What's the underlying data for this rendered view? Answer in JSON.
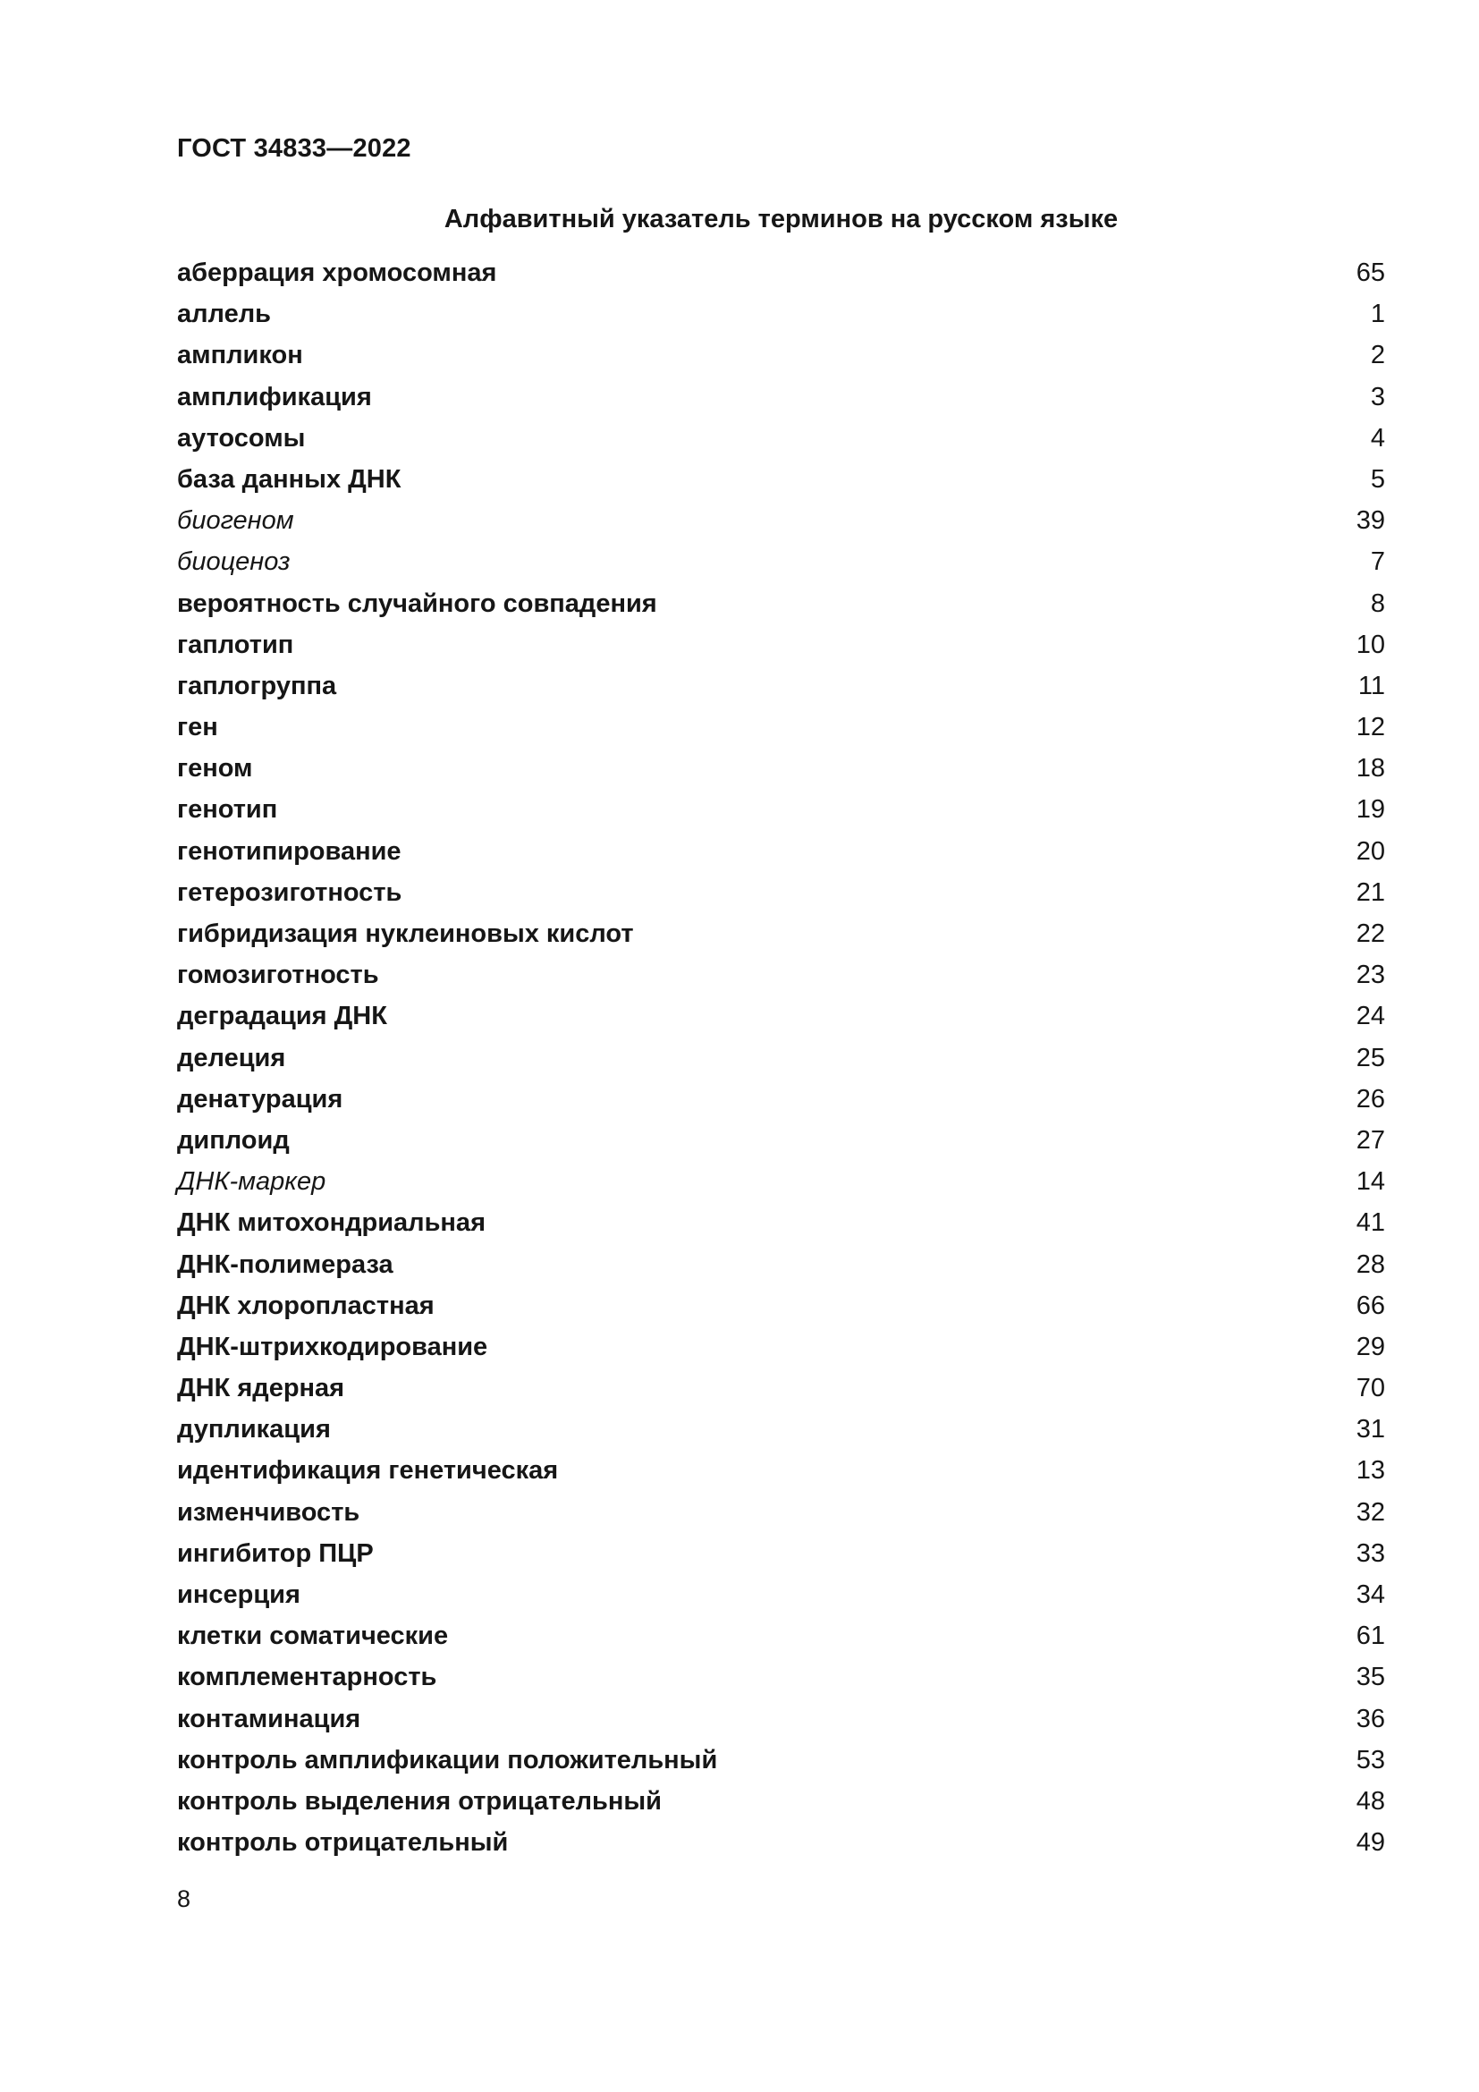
{
  "document": {
    "header": "ГОСТ 34833—2022",
    "title": "Алфавитный указатель терминов на русском языке",
    "footer_page_number": "8"
  },
  "index": {
    "entries": [
      {
        "term": "аберрация хромосомная",
        "num": "65",
        "style": "bold"
      },
      {
        "term": "аллель",
        "num": "1",
        "style": "bold"
      },
      {
        "term": "ампликон",
        "num": "2",
        "style": "bold"
      },
      {
        "term": "амплификация",
        "num": "3",
        "style": "bold"
      },
      {
        "term": "аутосомы",
        "num": "4",
        "style": "bold"
      },
      {
        "term": "база данных ДНК",
        "num": "5",
        "style": "bold"
      },
      {
        "term": "биогеном",
        "num": "39",
        "style": "italic"
      },
      {
        "term": "биоценоз",
        "num": "7",
        "style": "italic"
      },
      {
        "term": "вероятность случайного совпадения",
        "num": "8",
        "style": "bold"
      },
      {
        "term": "гаплотип",
        "num": "10",
        "style": "bold"
      },
      {
        "term": "гаплогруппа",
        "num": "11",
        "style": "bold"
      },
      {
        "term": "ген",
        "num": "12",
        "style": "bold"
      },
      {
        "term": "геном",
        "num": "18",
        "style": "bold"
      },
      {
        "term": "генотип",
        "num": "19",
        "style": "bold"
      },
      {
        "term": "генотипирование",
        "num": "20",
        "style": "bold"
      },
      {
        "term": "гетерозиготность",
        "num": "21",
        "style": "bold"
      },
      {
        "term": "гибридизация нуклеиновых кислот",
        "num": "22",
        "style": "bold"
      },
      {
        "term": "гомозиготность",
        "num": "23",
        "style": "bold"
      },
      {
        "term": "деградация ДНК",
        "num": "24",
        "style": "bold"
      },
      {
        "term": "делеция",
        "num": "25",
        "style": "bold"
      },
      {
        "term": "денатурация",
        "num": "26",
        "style": "bold"
      },
      {
        "term": "диплоид",
        "num": "27",
        "style": "bold"
      },
      {
        "term": "ДНК-маркер",
        "num": "14",
        "style": "italic"
      },
      {
        "term": "ДНК митохондриальная",
        "num": "41",
        "style": "bold"
      },
      {
        "term": "ДНК-полимераза",
        "num": "28",
        "style": "bold"
      },
      {
        "term": "ДНК хлоропластная",
        "num": "66",
        "style": "bold"
      },
      {
        "term": "ДНК-штрихкодирование",
        "num": "29",
        "style": "bold"
      },
      {
        "term": "ДНК ядерная",
        "num": "70",
        "style": "bold"
      },
      {
        "term": "дупликация",
        "num": "31",
        "style": "bold"
      },
      {
        "term": "идентификация генетическая",
        "num": "13",
        "style": "bold"
      },
      {
        "term": "изменчивость",
        "num": "32",
        "style": "bold"
      },
      {
        "term": "ингибитор ПЦР",
        "num": "33",
        "style": "bold"
      },
      {
        "term": "инсерция",
        "num": "34",
        "style": "bold"
      },
      {
        "term": "клетки соматические",
        "num": "61",
        "style": "bold"
      },
      {
        "term": "комплементарность",
        "num": "35",
        "style": "bold"
      },
      {
        "term": "контаминация",
        "num": "36",
        "style": "bold"
      },
      {
        "term": "контроль амплификации положительный",
        "num": "53",
        "style": "bold"
      },
      {
        "term": "контроль выделения отрицательный",
        "num": "48",
        "style": "bold"
      },
      {
        "term": "контроль отрицательный",
        "num": "49",
        "style": "bold"
      }
    ]
  }
}
